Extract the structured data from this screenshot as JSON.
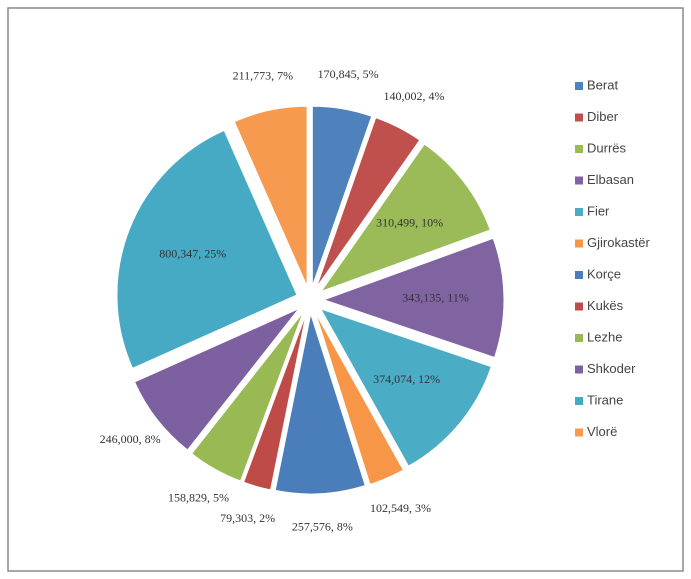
{
  "chart_data": {
    "type": "pie",
    "categories": [
      "Berat",
      "Diber",
      "Durrës",
      "Elbasan",
      "Fier",
      "Gjirokastër",
      "Korçe",
      "Kukës",
      "Lezhe",
      "Shkoder",
      "Tirane",
      "Vlorë"
    ],
    "values": [
      170845,
      140002,
      310499,
      343135,
      374074,
      102549,
      257576,
      79303,
      158829,
      246000,
      800347,
      211773
    ],
    "value_labels": [
      "170,845, 5%",
      "140,002, 4%",
      "310,499, 10%",
      "343,135, 11%",
      "374,074, 12%",
      "102,549, 3%",
      "257,576, 8%",
      "79,303, 2%",
      "158,829, 5%",
      "246,000, 8%",
      "800,347, 25%",
      "211,773, 7%"
    ],
    "colors": [
      "#4f81bd",
      "#c0504d",
      "#9bbb59",
      "#8064a2",
      "#4bacc6",
      "#f79646",
      "#4a7ebb",
      "#be4b48",
      "#98b954",
      "#7d60a0",
      "#46aac5",
      "#f59a4f"
    ],
    "legend": "right"
  }
}
